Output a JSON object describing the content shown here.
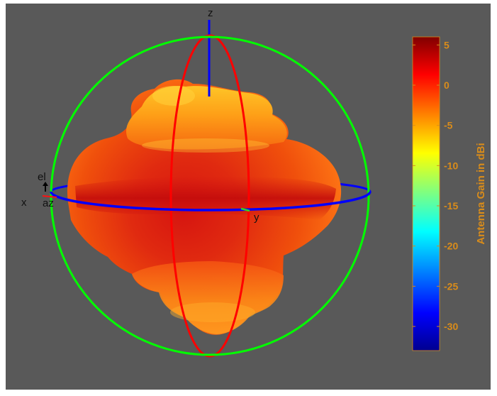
{
  "chart_data": {
    "type": "3d-radiation-pattern",
    "axes_letters": {
      "x": "x",
      "y": "y",
      "z": "z",
      "el": "el",
      "az": "az"
    },
    "colorbar": {
      "label": "Antenna Gain in dBi",
      "ticks": [
        5,
        0,
        -5,
        -10,
        -15,
        -20,
        -25,
        -30
      ],
      "tick_labels": [
        "5",
        "0",
        "-5",
        "-10",
        "-15",
        "-20",
        "-25",
        "-30"
      ],
      "range": [
        -33,
        6
      ],
      "colormap": "jet"
    },
    "colors": {
      "figure_background": "#ffffff",
      "plot_background": "#595959",
      "sphere_equator_ring": "#0000ff",
      "sphere_meridian_ring": "#ff0000",
      "sphere_outline_circle": "#00ff00",
      "colorbar_text": "#d98c1a"
    }
  }
}
